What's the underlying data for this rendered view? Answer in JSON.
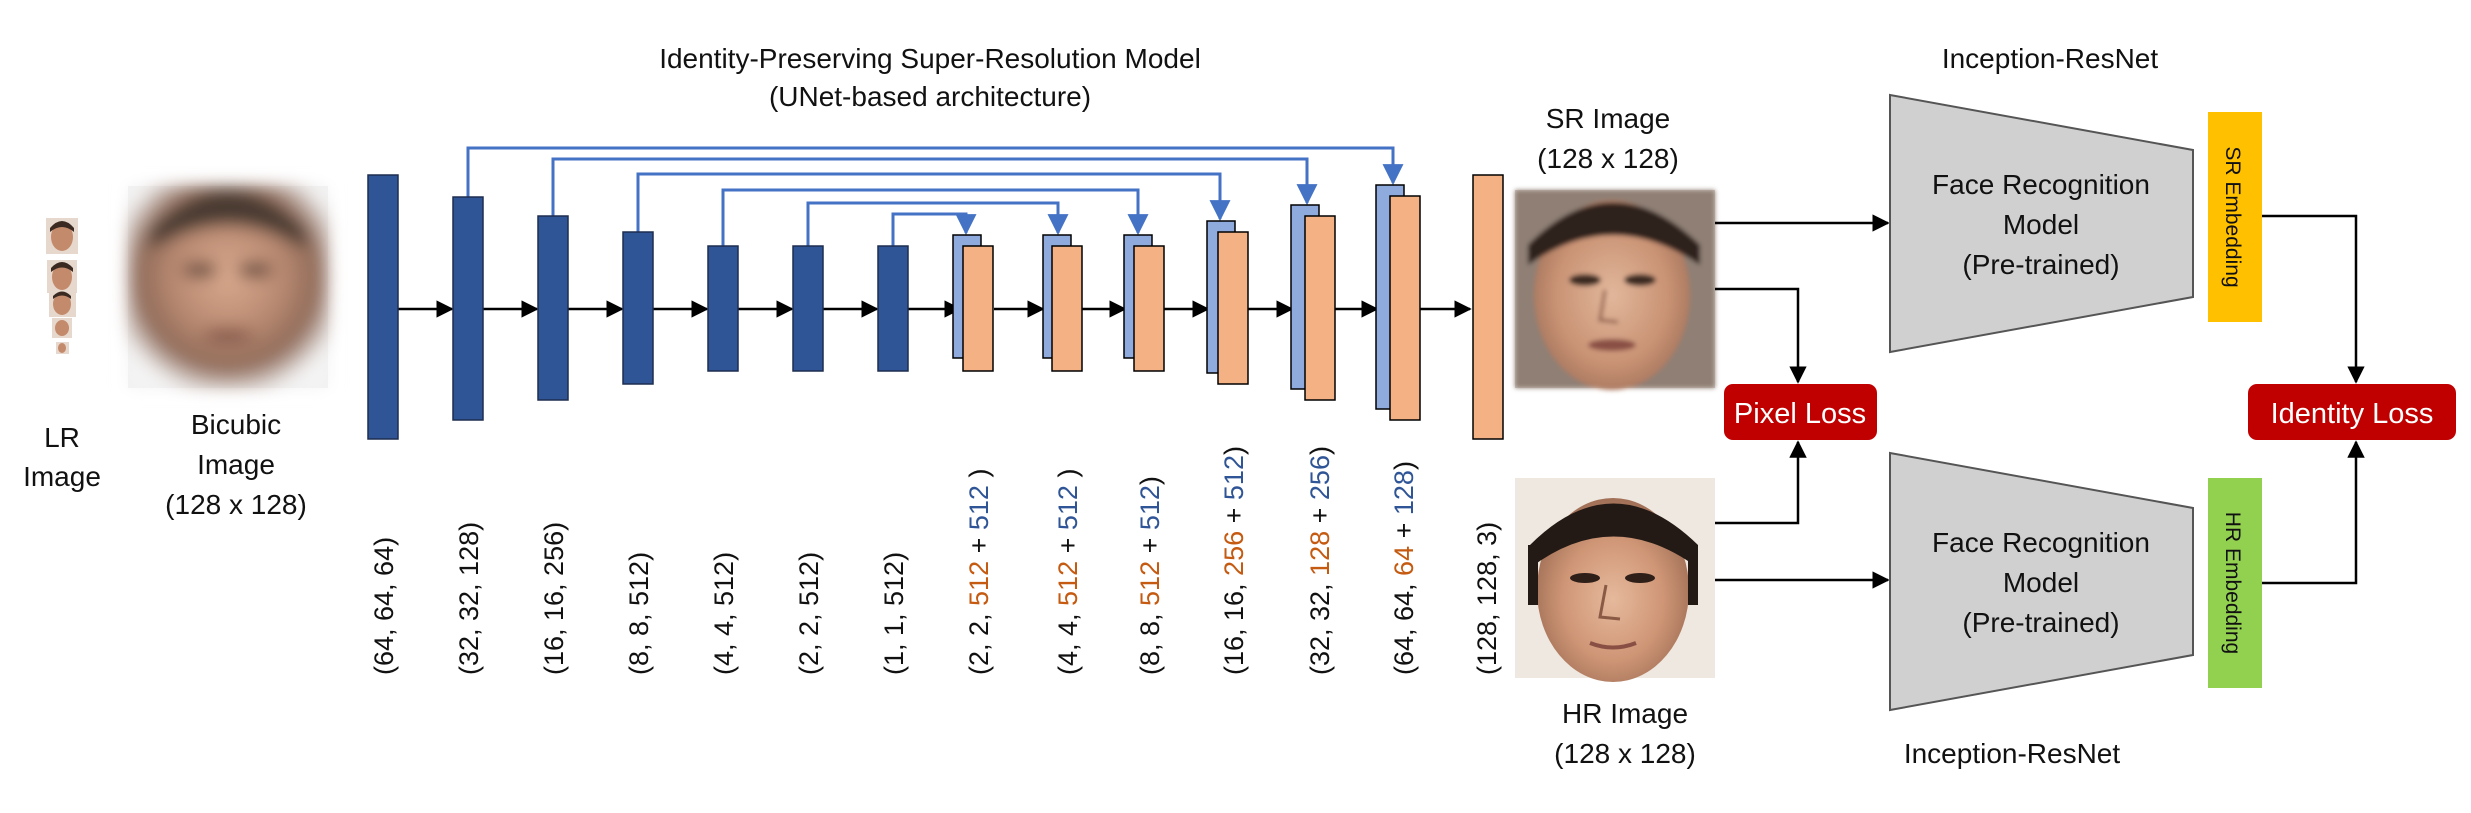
{
  "title": {
    "line1": "Identity-Preserving Super-Resolution Model",
    "line2": "(UNet-based architecture)"
  },
  "lr": {
    "line1": "LR",
    "line2": "Image"
  },
  "bicubic": {
    "line1": "Bicubic",
    "line2": "Image",
    "line3": "(128 x 128)"
  },
  "sr": {
    "line1": "SR Image",
    "line2": "(128 x 128)"
  },
  "hr": {
    "line1": "HR Image",
    "line2": "(128 x 128)"
  },
  "model_top": {
    "header": "Inception-ResNet",
    "line1": "Face Recognition",
    "line2": "Model",
    "line3": "(Pre-trained)"
  },
  "model_bottom": {
    "footer": "Inception-ResNet",
    "line1": "Face Recognition",
    "line2": "Model",
    "line3": "(Pre-trained)"
  },
  "sr_embedding": "SR Embedding",
  "hr_embedding": "HR Embedding",
  "pixel_loss": "Pixel Loss",
  "identity_loss": "Identity  Loss",
  "encoder_dims": [
    "(64, 64, 64)",
    "(32, 32, 128)",
    "(16, 16, 256)",
    "(8, 8, 512)",
    "(4, 4, 512)",
    "(2, 2, 512)",
    "(1, 1, 512)"
  ],
  "decoder_dims": [
    {
      "prefix": "(2, 2, ",
      "orange": "512",
      "mid": " + ",
      "blue": "512",
      "suffix": " )"
    },
    {
      "prefix": "(4, 4, ",
      "orange": "512",
      "mid": " + ",
      "blue": "512",
      "suffix": " )"
    },
    {
      "prefix": "(8, 8, ",
      "orange": "512",
      "mid": "  + ",
      "blue": "512",
      "suffix": ")"
    },
    {
      "prefix": "(16, 16, ",
      "orange": "256",
      "mid": "  + ",
      "blue": "512",
      "suffix": ")"
    },
    {
      "prefix": "(32, 32, ",
      "orange": "128",
      "mid": " + ",
      "blue": "256",
      "suffix": ")"
    },
    {
      "prefix": "(64, 64, ",
      "orange": "64",
      "mid": " + ",
      "blue": "128",
      "suffix": ")"
    }
  ],
  "output_dim": "(128, 128, 3)",
  "colors": {
    "encoder": "#2f5597",
    "skip": "#4472c4",
    "skip_block": "#8faadc",
    "decoder": "#f4b183",
    "model": "#d0d0d0",
    "loss": "#c00000",
    "sr_emb": "#ffc000",
    "hr_emb": "#92d050",
    "orange_text": "#c55a11",
    "blue_text": "#2f5597"
  },
  "icons": {
    "lr_faces": "face-thumbnail-icon",
    "bicubic": "blurry-face-image",
    "sr": "sr-face-image",
    "hr": "hr-face-image"
  }
}
